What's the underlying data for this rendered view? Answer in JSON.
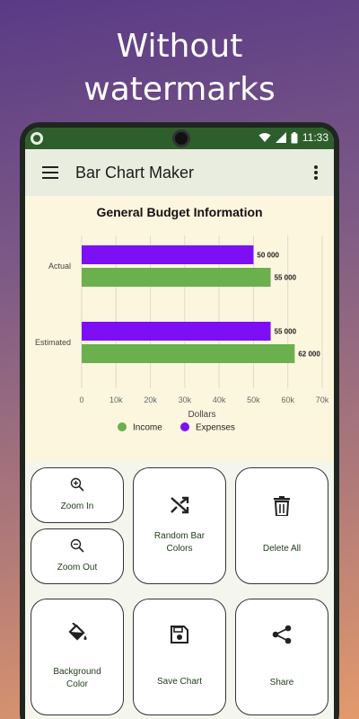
{
  "promo": {
    "headline_line1": "Without",
    "headline_line2": "watermarks"
  },
  "status": {
    "time": "11:33"
  },
  "appbar": {
    "title": "Bar Chart Maker",
    "menu_icon": "hamburger-menu-icon",
    "more_icon": "more-vert-icon"
  },
  "colors": {
    "income": "#6ab04c",
    "expenses": "#7e0ff5",
    "chart_bg": "#fdf6de",
    "appbar_bg": "#e9eddf",
    "status_bg": "#2e5e2b"
  },
  "chart_data": {
    "type": "bar",
    "orientation": "horizontal",
    "title": "General Budget Information",
    "xlabel": "Dollars",
    "ylabel": "",
    "categories": [
      "Actual",
      "Estimated"
    ],
    "series": [
      {
        "name": "Expenses",
        "values": [
          50000,
          55000
        ],
        "labels": [
          "50 000",
          "55 000"
        ]
      },
      {
        "name": "Income",
        "values": [
          55000,
          62000
        ],
        "labels": [
          "55 000",
          "62 000"
        ]
      }
    ],
    "xlim": [
      0,
      70000
    ],
    "xticks": [
      "0",
      "10k",
      "20k",
      "30k",
      "40k",
      "50k",
      "60k",
      "70k"
    ],
    "grid": true,
    "legend": [
      "Income",
      "Expenses"
    ],
    "legend_position": "bottom"
  },
  "controls": {
    "zoom_in": {
      "label": "Zoom In",
      "icon": "zoom-in-icon"
    },
    "zoom_out": {
      "label": "Zoom Out",
      "icon": "zoom-out-icon"
    },
    "random_colors": {
      "label": "Random Bar Colors",
      "icon": "shuffle-icon"
    },
    "delete_all": {
      "label": "Delete All",
      "icon": "trash-icon"
    },
    "background_color": {
      "label": "Background Color",
      "icon": "paint-bucket-icon"
    },
    "save_chart": {
      "label": "Save Chart",
      "icon": "save-icon"
    },
    "share": {
      "label": "Share",
      "icon": "share-icon"
    }
  }
}
